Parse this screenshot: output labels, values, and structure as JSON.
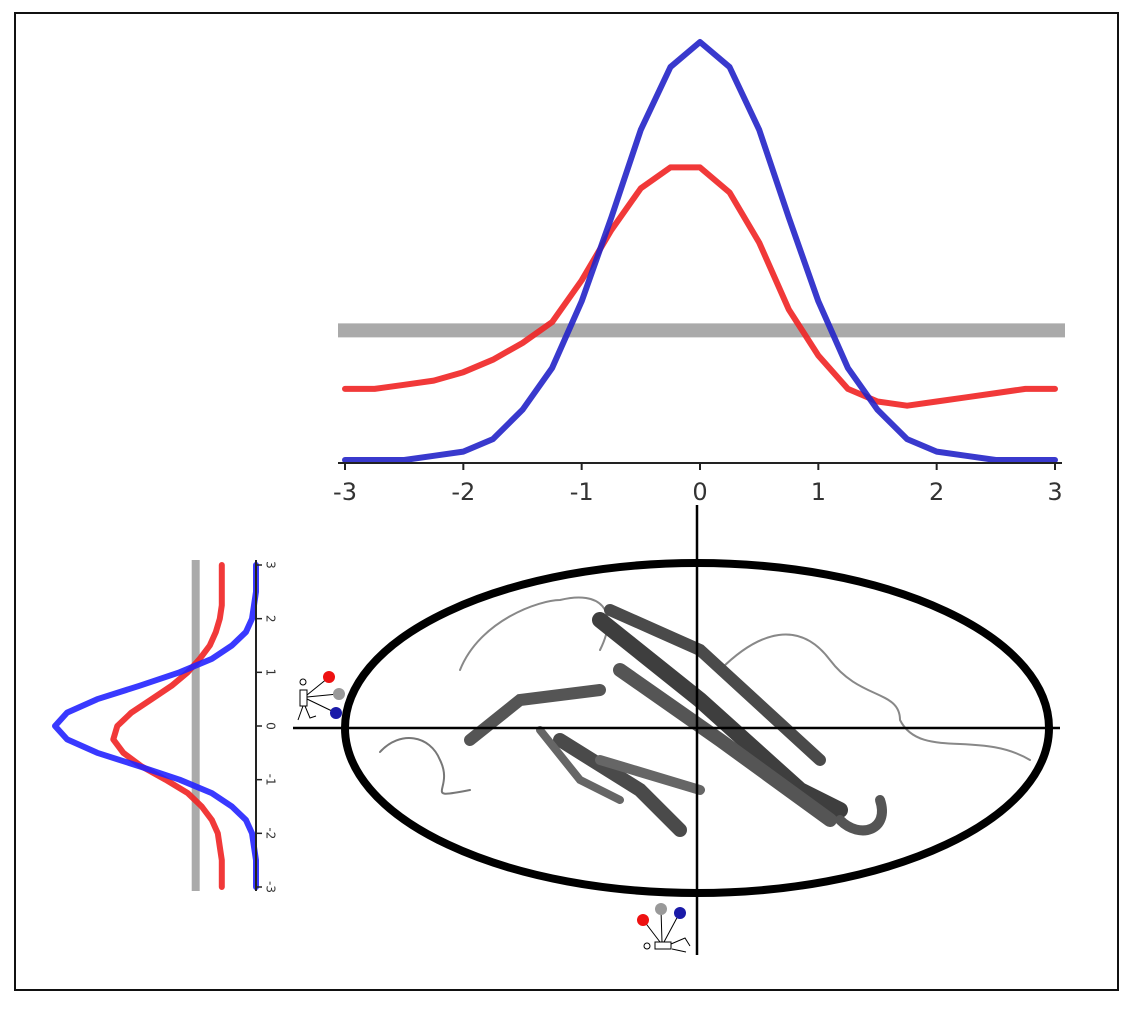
{
  "chart_data": [
    {
      "type": "line",
      "orientation": "horizontal",
      "x": [
        -3,
        -2.75,
        -2.5,
        -2.25,
        -2,
        -1.75,
        -1.5,
        -1.25,
        -1,
        -0.75,
        -0.5,
        -0.25,
        0,
        0.25,
        0.5,
        0.75,
        1,
        1.25,
        1.5,
        1.75,
        2,
        2.25,
        2.5,
        2.75,
        3
      ],
      "xlim": [
        -3,
        3
      ],
      "xticks": [
        -3,
        -2,
        -1,
        0,
        1,
        2,
        3
      ],
      "ylim": [
        0,
        1
      ],
      "threshold": 0.31,
      "threshold_color": "#aaaaaa",
      "series": [
        {
          "color": "#f02424",
          "values": [
            0.17,
            0.17,
            0.18,
            0.19,
            0.21,
            0.24,
            0.28,
            0.33,
            0.43,
            0.55,
            0.65,
            0.7,
            0.7,
            0.64,
            0.52,
            0.36,
            0.25,
            0.17,
            0.14,
            0.13,
            0.14,
            0.15,
            0.16,
            0.17,
            0.17
          ]
        },
        {
          "color": "#2424c8",
          "values": [
            0,
            0,
            0,
            0.01,
            0.02,
            0.05,
            0.12,
            0.22,
            0.38,
            0.58,
            0.79,
            0.94,
            1,
            0.94,
            0.79,
            0.58,
            0.38,
            0.22,
            0.12,
            0.05,
            0.02,
            0.01,
            0,
            0,
            0
          ]
        }
      ]
    },
    {
      "type": "line",
      "orientation": "vertical",
      "x": [
        -3,
        -2.75,
        -2.5,
        -2.25,
        -2,
        -1.75,
        -1.5,
        -1.25,
        -1,
        -0.75,
        -0.5,
        -0.25,
        0,
        0.25,
        0.5,
        0.75,
        1,
        1.25,
        1.5,
        1.75,
        2,
        2.25,
        2.5,
        2.75,
        3
      ],
      "xlim": [
        -3,
        3
      ],
      "xticks": [
        -3,
        -2,
        -1,
        0,
        1,
        2,
        3
      ],
      "ylim": [
        0,
        1
      ],
      "threshold": 0.3,
      "threshold_color": "#aaaaaa",
      "series": [
        {
          "color": "#f02424",
          "values": [
            0.17,
            0.17,
            0.17,
            0.18,
            0.19,
            0.22,
            0.27,
            0.34,
            0.45,
            0.57,
            0.66,
            0.71,
            0.69,
            0.62,
            0.52,
            0.42,
            0.34,
            0.28,
            0.23,
            0.2,
            0.18,
            0.17,
            0.17,
            0.17,
            0.17
          ]
        },
        {
          "color": "#2424ff",
          "values": [
            0,
            0,
            0,
            0.01,
            0.02,
            0.05,
            0.12,
            0.22,
            0.38,
            0.58,
            0.79,
            0.94,
            1,
            0.94,
            0.79,
            0.58,
            0.38,
            0.22,
            0.12,
            0.05,
            0.02,
            0.01,
            0,
            0,
            0
          ]
        }
      ]
    }
  ]
}
